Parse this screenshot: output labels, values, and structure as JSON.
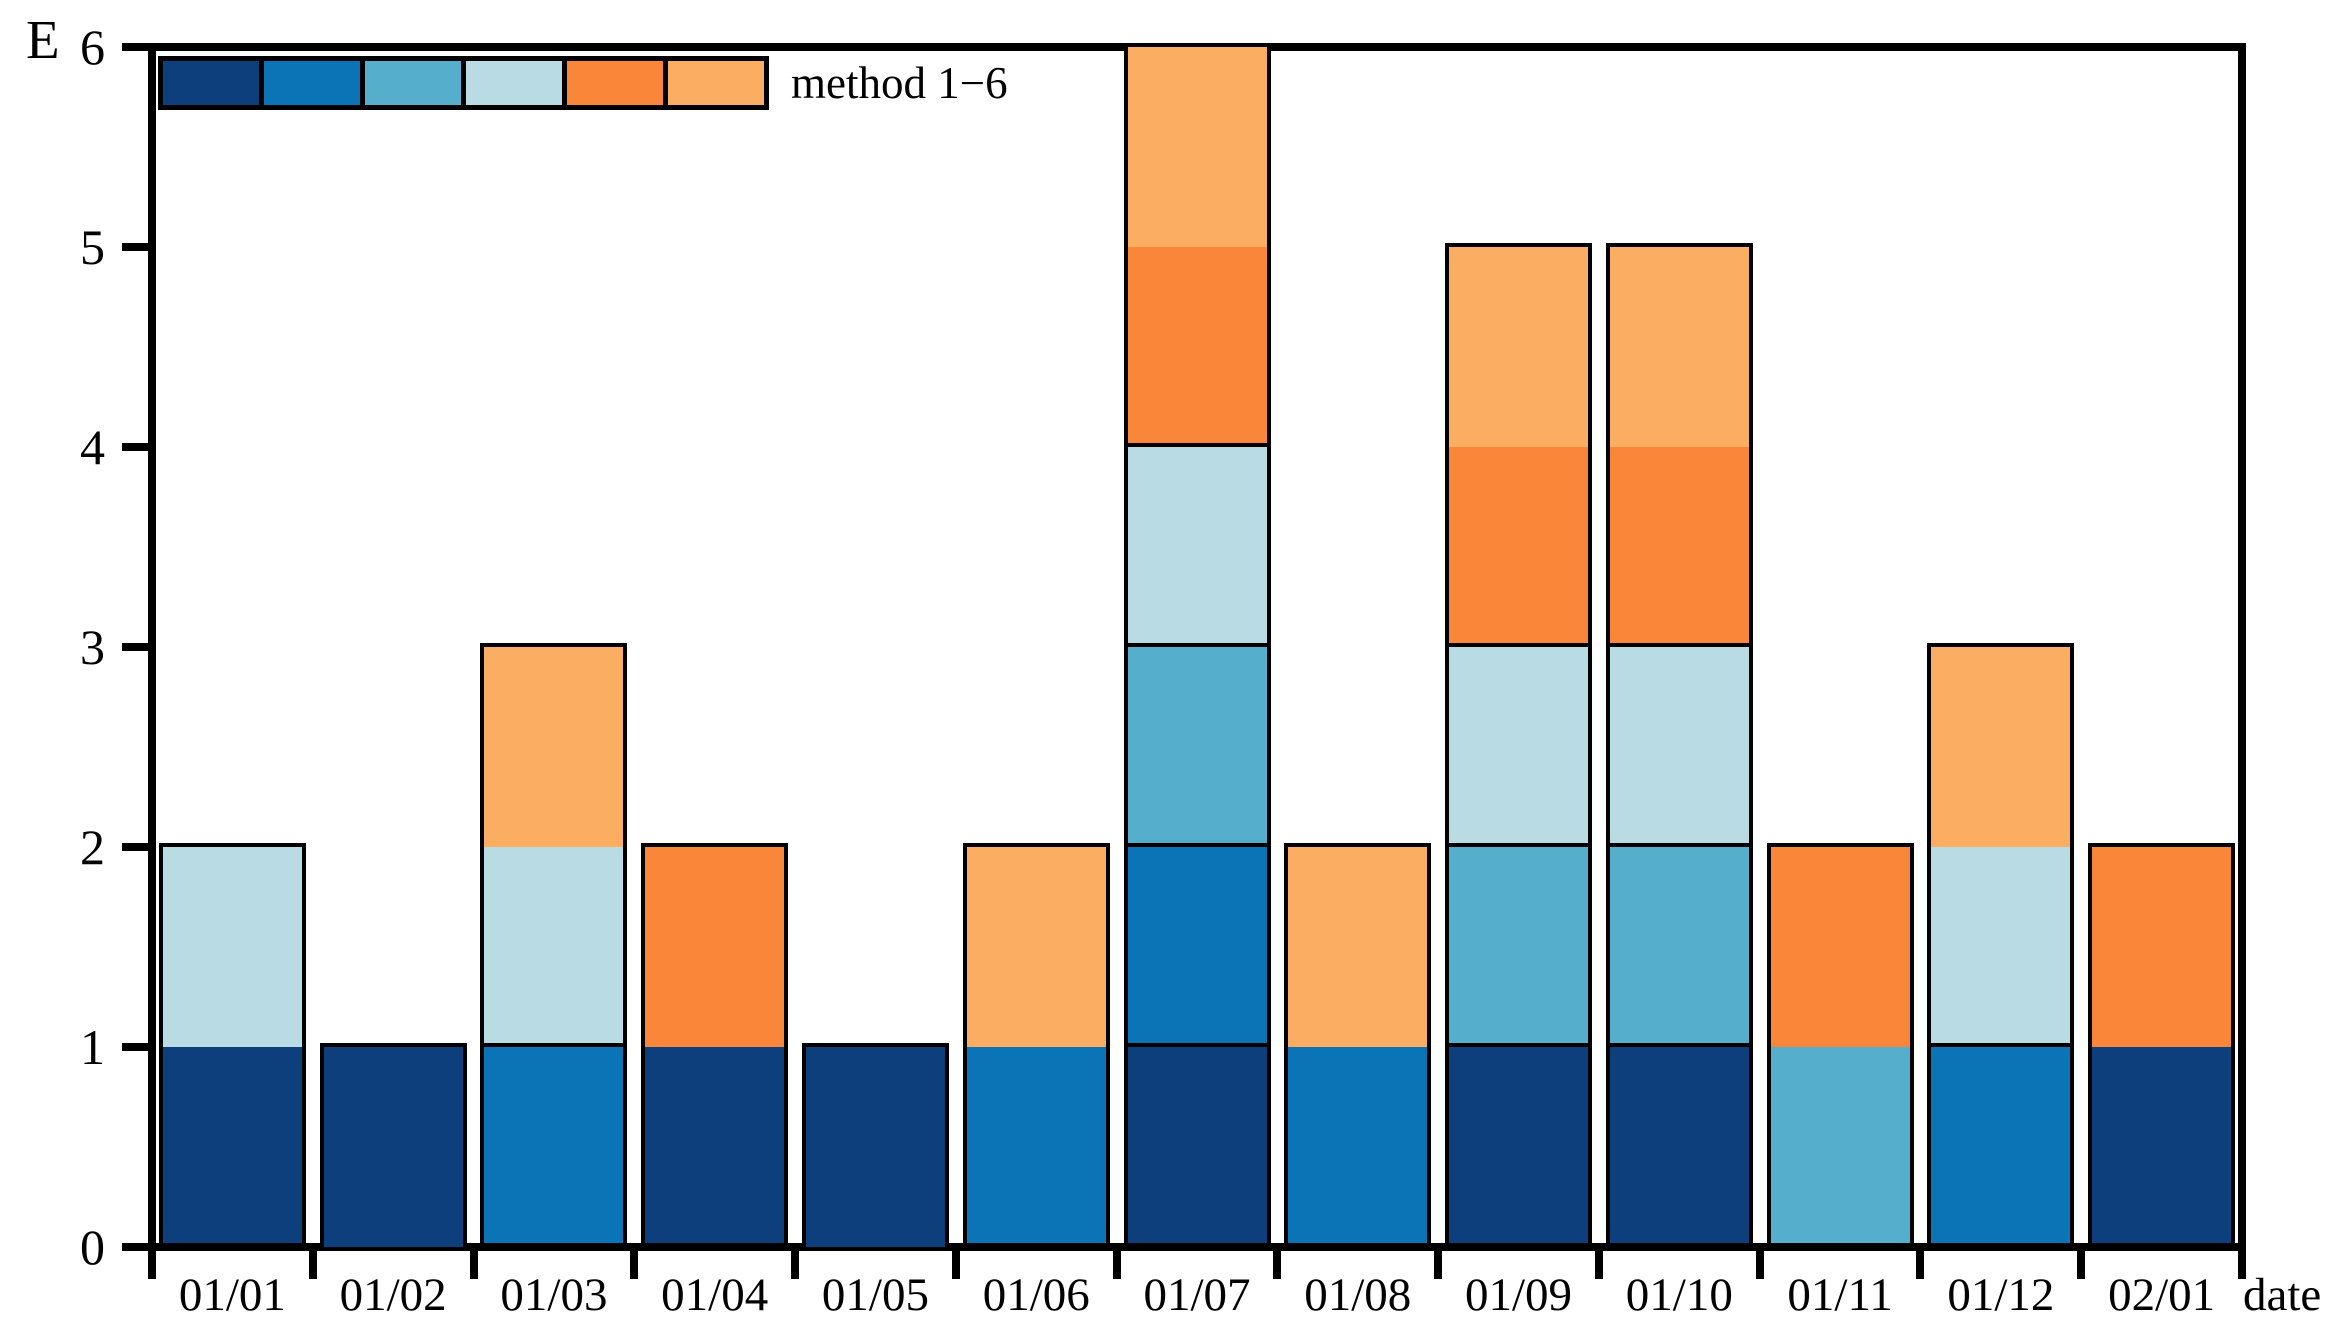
{
  "chart_data": {
    "type": "bar",
    "stacked": true,
    "title": "",
    "ylabel": "E",
    "xlabel": "date",
    "ylim": [
      0,
      6
    ],
    "yticks": [
      0,
      1,
      2,
      3,
      4,
      5,
      6
    ],
    "grid": false,
    "legend_position": "top-left-inside",
    "legend_label": "method 1−6",
    "categories": [
      "01/01",
      "01/02",
      "01/03",
      "01/04",
      "01/05",
      "01/06",
      "01/07",
      "01/08",
      "01/09",
      "01/10",
      "01/11",
      "01/12",
      "02/01"
    ],
    "series": [
      {
        "name": "method 1",
        "color": "#0C3F7B",
        "values": [
          1,
          1,
          0,
          1,
          1,
          0,
          1,
          0,
          1,
          1,
          0,
          0,
          1
        ]
      },
      {
        "name": "method 2",
        "color": "#0A74B6",
        "values": [
          0,
          0,
          1,
          0,
          0,
          1,
          1,
          1,
          0,
          0,
          0,
          1,
          0
        ]
      },
      {
        "name": "method 3",
        "color": "#55AECB",
        "values": [
          0,
          0,
          0,
          0,
          0,
          0,
          1,
          0,
          1,
          1,
          1,
          0,
          0
        ]
      },
      {
        "name": "method 4",
        "color": "#B9DCE4",
        "values": [
          1,
          0,
          1,
          0,
          0,
          0,
          1,
          0,
          1,
          1,
          0,
          1,
          0
        ]
      },
      {
        "name": "method 5",
        "color": "#FA863A",
        "values": [
          0,
          0,
          0,
          1,
          0,
          0,
          1,
          0,
          1,
          1,
          1,
          0,
          1
        ]
      },
      {
        "name": "method 6",
        "color": "#FBAD61",
        "values": [
          0,
          0,
          1,
          0,
          0,
          1,
          1,
          1,
          1,
          1,
          0,
          1,
          0
        ]
      }
    ],
    "totals": [
      2,
      1,
      3,
      2,
      1,
      2,
      6,
      2,
      5,
      5,
      2,
      3,
      2
    ],
    "axis_color": "#000000",
    "bar_edge_color": "#000000"
  }
}
